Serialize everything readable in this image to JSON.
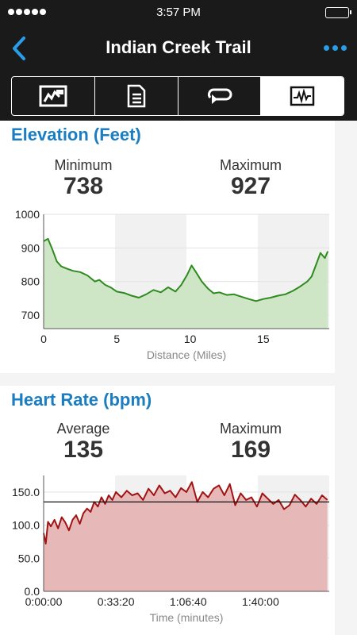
{
  "status_bar": {
    "time": "3:57 PM",
    "signal_bars": 5
  },
  "nav": {
    "title": "Indian Creek Trail"
  },
  "tabs": [
    {
      "name": "map",
      "icon": "map-icon",
      "active": false
    },
    {
      "name": "details",
      "icon": "document-list-icon",
      "active": false
    },
    {
      "name": "laps",
      "icon": "loop-arrow-icon",
      "active": false
    },
    {
      "name": "charts",
      "icon": "chart-waveform-icon",
      "active": true
    }
  ],
  "elevation": {
    "title": "Elevation (Feet)",
    "min_label": "Minimum",
    "min_value": "738",
    "max_label": "Maximum",
    "max_value": "927"
  },
  "heart_rate": {
    "title": "Heart Rate (bpm)",
    "avg_label": "Average",
    "avg_value": "135",
    "max_label": "Maximum",
    "max_value": "169"
  },
  "chart_data": [
    {
      "type": "area",
      "xlabel": "Distance (Miles)",
      "ylabel": "",
      "xlim": [
        0,
        19.5
      ],
      "ylim": [
        660,
        1000
      ],
      "x_ticks": [
        "0",
        "5",
        "10",
        "15"
      ],
      "x_tick_values": [
        0,
        5,
        10,
        15
      ],
      "y_ticks": [
        "1000",
        "900",
        "800",
        "700"
      ],
      "y_tick_values": [
        1000,
        900,
        800,
        700
      ],
      "line_color": "#2e8b1f",
      "fill_color": "#cfe6c6",
      "grid": true,
      "x": [
        0,
        0.3,
        0.6,
        0.9,
        1.2,
        1.6,
        2.0,
        2.5,
        3.0,
        3.5,
        3.8,
        4.2,
        4.6,
        5.0,
        5.5,
        6.0,
        6.5,
        7.0,
        7.5,
        8.0,
        8.5,
        9.0,
        9.4,
        9.8,
        10.1,
        10.4,
        10.8,
        11.2,
        11.6,
        12.0,
        12.5,
        13.0,
        13.5,
        14.0,
        14.5,
        15.0,
        15.5,
        16.0,
        16.5,
        17.0,
        17.5,
        18.0,
        18.3,
        18.6,
        18.9,
        19.2,
        19.4
      ],
      "y": [
        920,
        927,
        895,
        860,
        845,
        838,
        832,
        828,
        818,
        800,
        805,
        790,
        782,
        770,
        766,
        758,
        752,
        762,
        775,
        768,
        783,
        770,
        790,
        820,
        848,
        828,
        800,
        780,
        765,
        768,
        760,
        762,
        755,
        748,
        742,
        748,
        752,
        758,
        762,
        772,
        785,
        800,
        815,
        850,
        885,
        870,
        890
      ]
    },
    {
      "type": "area",
      "xlabel": "Time (minutes)",
      "ylabel": "",
      "xlim": [
        0,
        7900
      ],
      "ylim": [
        0,
        175
      ],
      "x_ticks": [
        "0:00:00",
        "0:33:20",
        "1:06:40",
        "1:40:00"
      ],
      "x_tick_values": [
        0,
        2000,
        4000,
        6000
      ],
      "y_ticks": [
        "150.0",
        "100.0",
        "50.0",
        "0.0"
      ],
      "y_tick_values": [
        150,
        100,
        50,
        0
      ],
      "average": 135,
      "line_color": "#a11313",
      "fill_color": "#e7b8b8",
      "grid": true,
      "x": [
        0,
        60,
        120,
        200,
        300,
        400,
        500,
        600,
        700,
        800,
        900,
        1000,
        1100,
        1200,
        1300,
        1400,
        1500,
        1600,
        1700,
        1800,
        1900,
        2000,
        2150,
        2300,
        2450,
        2600,
        2750,
        2900,
        3050,
        3200,
        3350,
        3500,
        3650,
        3800,
        3950,
        4100,
        4250,
        4400,
        4550,
        4700,
        4850,
        5000,
        5150,
        5300,
        5450,
        5600,
        5750,
        5900,
        6050,
        6200,
        6350,
        6500,
        6650,
        6800,
        6950,
        7100,
        7250,
        7400,
        7550,
        7700,
        7850
      ],
      "y": [
        88,
        72,
        105,
        98,
        108,
        95,
        112,
        104,
        92,
        108,
        115,
        102,
        118,
        125,
        120,
        135,
        128,
        142,
        132,
        145,
        138,
        150,
        142,
        152,
        145,
        148,
        138,
        155,
        145,
        160,
        148,
        152,
        142,
        156,
        150,
        165,
        135,
        150,
        142,
        155,
        160,
        145,
        162,
        130,
        148,
        138,
        142,
        128,
        148,
        140,
        132,
        138,
        124,
        130,
        146,
        138,
        128,
        140,
        132,
        145,
        138
      ]
    }
  ]
}
